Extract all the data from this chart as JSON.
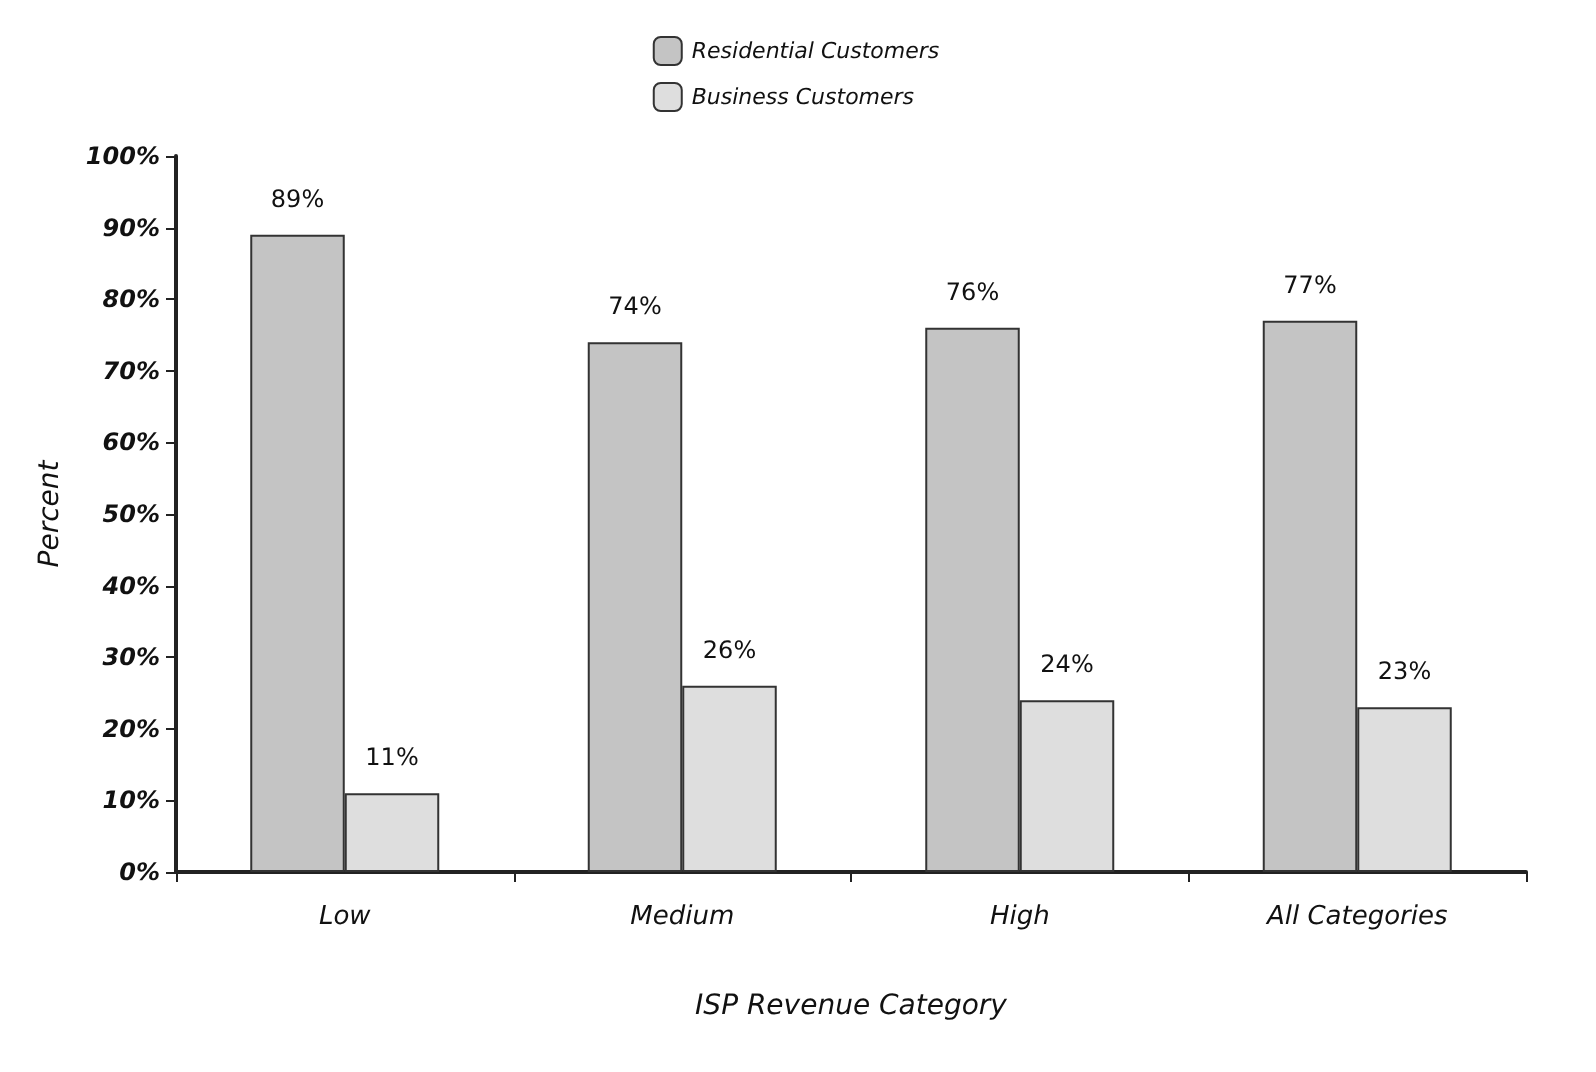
{
  "chart_data": {
    "type": "bar",
    "xlabel": "ISP Revenue Category",
    "ylabel": "Percent",
    "categories": [
      "Low",
      "Medium",
      "High",
      "All Categories"
    ],
    "series": [
      {
        "name": "Residential Customers",
        "color": "#c4c4c4",
        "values": [
          89,
          74,
          76,
          77
        ],
        "value_labels": [
          "89%",
          "74%",
          "76%",
          "77%"
        ]
      },
      {
        "name": "Business Customers",
        "color": "#dedede",
        "values": [
          11,
          26,
          24,
          23
        ],
        "value_labels": [
          "11%",
          "26%",
          "24%",
          "23%"
        ]
      }
    ],
    "ylim": [
      0,
      100
    ],
    "yticks": [
      {
        "value": 0,
        "label": "0%"
      },
      {
        "value": 10,
        "label": "10%"
      },
      {
        "value": 20,
        "label": "20%"
      },
      {
        "value": 30,
        "label": "30%"
      },
      {
        "value": 40,
        "label": "40%"
      },
      {
        "value": 50,
        "label": "50%"
      },
      {
        "value": 60,
        "label": "60%"
      },
      {
        "value": 70,
        "label": "70%"
      },
      {
        "value": 80,
        "label": "80%"
      },
      {
        "value": 90,
        "label": "90%"
      },
      {
        "value": 100,
        "label": "100%"
      }
    ],
    "grid": false,
    "legend": "top"
  }
}
